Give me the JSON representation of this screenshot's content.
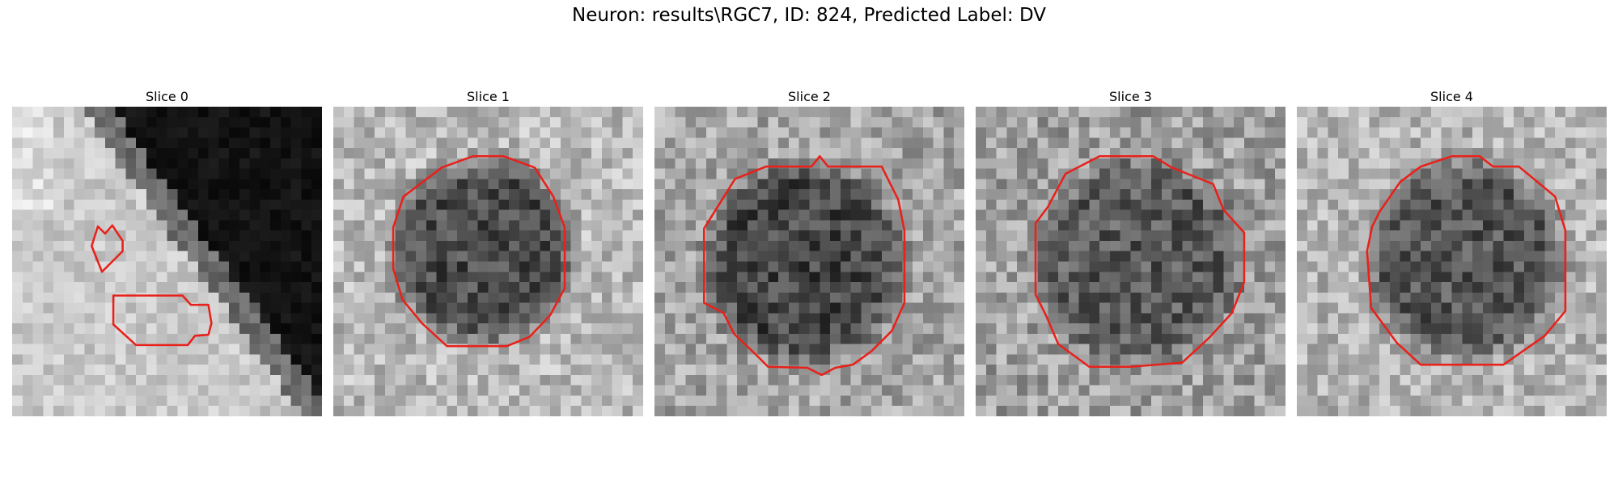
{
  "figure": {
    "title": "Neuron: results\\RGC7, ID: 824, Predicted Label: DV"
  },
  "colors": {
    "contour": "#e8211a",
    "background": "#ffffff"
  },
  "slices": [
    {
      "title": "Slice 0",
      "image_type": "grayscale-microscopy-patch",
      "overlay": "red-roi-contours"
    },
    {
      "title": "Slice 1",
      "image_type": "grayscale-microscopy-patch",
      "overlay": "red-roi-contour"
    },
    {
      "title": "Slice 2",
      "image_type": "grayscale-microscopy-patch",
      "overlay": "red-roi-contour"
    },
    {
      "title": "Slice 3",
      "image_type": "grayscale-microscopy-patch",
      "overlay": "red-roi-contour"
    },
    {
      "title": "Slice 4",
      "image_type": "grayscale-microscopy-patch",
      "overlay": "red-roi-contour"
    }
  ]
}
